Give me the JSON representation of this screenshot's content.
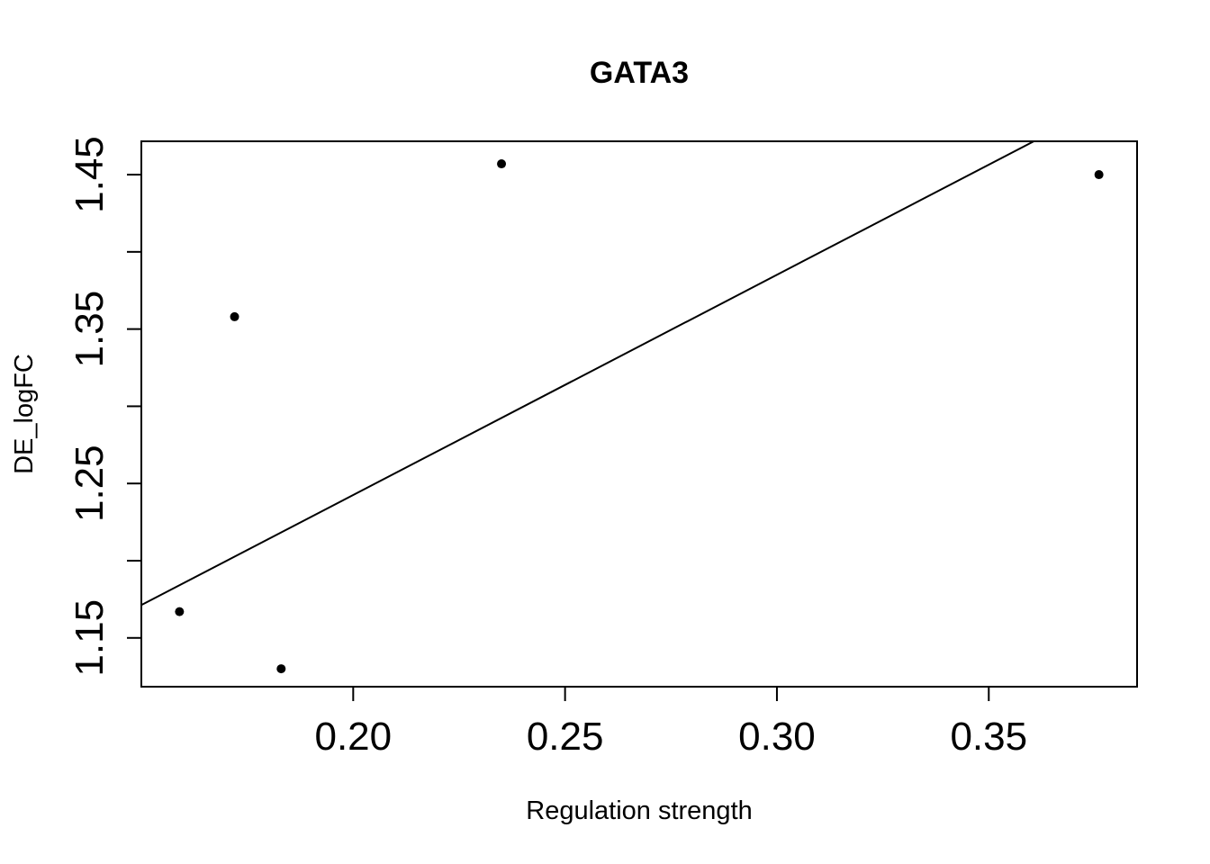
{
  "chart_data": {
    "type": "scatter",
    "title": "GATA3",
    "xlabel": "Regulation strength",
    "ylabel": "DE_logFC",
    "xlim": [
      0.15,
      0.385
    ],
    "ylim": [
      1.1184,
      1.4716
    ],
    "x_ticks": [
      0.2,
      0.25,
      0.3,
      0.35
    ],
    "x_tick_labels": [
      "0.20",
      "0.25",
      "0.30",
      "0.35"
    ],
    "y_ticks": [
      1.15,
      1.2,
      1.25,
      1.3,
      1.35,
      1.4,
      1.45
    ],
    "y_tick_labels": [
      "1.15",
      "",
      "1.25",
      "",
      "1.35",
      "",
      "1.45"
    ],
    "points": [
      {
        "x": 0.159,
        "y": 1.167
      },
      {
        "x": 0.172,
        "y": 1.358
      },
      {
        "x": 0.183,
        "y": 1.13
      },
      {
        "x": 0.235,
        "y": 1.457
      },
      {
        "x": 0.376,
        "y": 1.45
      }
    ],
    "fit_line": {
      "intercept": 0.9574,
      "slope": 1.4258
    },
    "grid": false,
    "legend": "none"
  }
}
